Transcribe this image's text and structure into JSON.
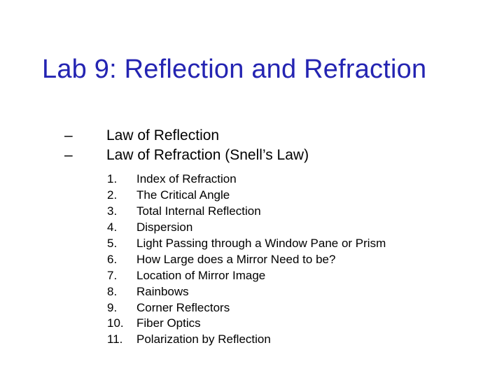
{
  "title": "Lab 9: Reflection and Refraction",
  "title_color": "#2424b2",
  "title_fontsize": 38,
  "background_color": "#ffffff",
  "text_color": "#000000",
  "dash_items": [
    {
      "marker": "–",
      "text": "Law of Reflection"
    },
    {
      "marker": "–",
      "text": "Law of Refraction (Snell’s Law)"
    }
  ],
  "dash_fontsize": 21,
  "numbered_items": [
    {
      "num": "1.",
      "text": "Index of Refraction"
    },
    {
      "num": "2.",
      "text": "The Critical Angle"
    },
    {
      "num": "3.",
      "text": "Total Internal Reflection"
    },
    {
      "num": "4.",
      "text": "Dispersion"
    },
    {
      "num": "5.",
      "text": "Light Passing through a Window Pane or Prism"
    },
    {
      "num": "6.",
      "text": "How Large does a Mirror Need to be?"
    },
    {
      "num": "7.",
      "text": "Location of Mirror Image"
    },
    {
      "num": "8.",
      "text": "Rainbows"
    },
    {
      "num": "9.",
      "text": "Corner Reflectors"
    },
    {
      "num": "10.",
      "text": "Fiber Optics"
    },
    {
      "num": "11.",
      "text": "Polarization by Reflection"
    }
  ],
  "numbered_fontsize": 17
}
